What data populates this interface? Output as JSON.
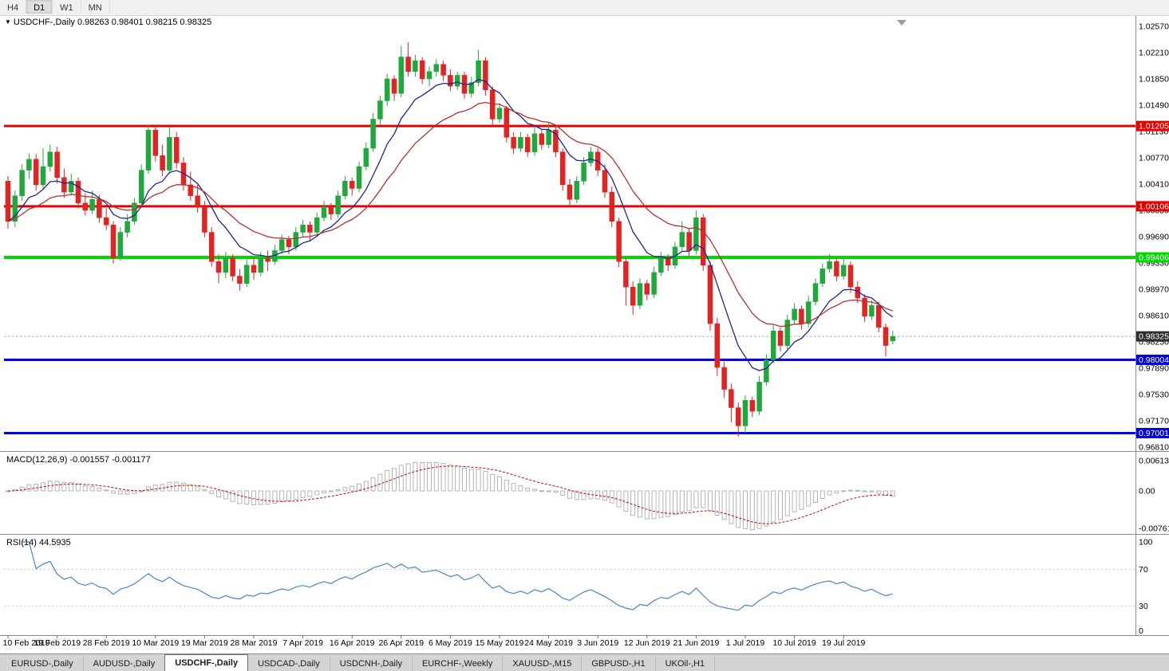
{
  "toolbar": {
    "timeframes": [
      {
        "label": "H4",
        "active": false
      },
      {
        "label": "D1",
        "active": true
      },
      {
        "label": "W1",
        "active": false
      },
      {
        "label": "MN",
        "active": false
      }
    ]
  },
  "chart": {
    "title_text": "USDCHF-,Daily 0.98263 0.98401 0.98215 0.98325",
    "symbol": "USDCHF-,Daily",
    "current_price": 0.98325,
    "current_price_label": "0.98325",
    "price_ticks": [
      "1.02570",
      "1.02210",
      "1.01850",
      "1.01490",
      "1.01130",
      "1.00770",
      "1.00410",
      "1.00050",
      "0.99690",
      "0.99330",
      "0.98970",
      "0.98610",
      "0.98250",
      "0.97890",
      "0.97530",
      "0.97170",
      "0.96810"
    ],
    "levels": [
      {
        "label": "1.01205",
        "price": 1.01205,
        "color": "#e60000",
        "thickness": 3
      },
      {
        "label": "1.00106",
        "price": 1.00106,
        "color": "#e60000",
        "thickness": 3
      },
      {
        "label": "0.99406",
        "price": 0.99406,
        "color": "#00d800",
        "thickness": 4
      },
      {
        "label": "0.98004",
        "price": 0.98004,
        "color": "#0000e6",
        "thickness": 3
      },
      {
        "label": "0.97001",
        "price": 0.97001,
        "color": "#0000e6",
        "thickness": 3
      }
    ],
    "colors": {
      "up": "#1fa83c",
      "down": "#e32222",
      "ma_fast": "#23238f",
      "ma_slow": "#b23232",
      "macd_hist_stroke": "#b4b4b4",
      "macd_signal": "#d00000",
      "rsi_line": "#4a86c8",
      "current_line": "#b4b4b4",
      "current_label_bg": "#2e2e2e"
    }
  },
  "chart_data": {
    "type": "candlestick",
    "symbol": "USDCHF",
    "timeframe": "Daily",
    "ohlc_current": {
      "open": 0.98263,
      "high": 0.98401,
      "low": 0.98215,
      "close": 0.98325
    },
    "candles": [
      [
        1.0045,
        1.0052,
        0.998,
        0.999
      ],
      [
        0.999,
        1.0032,
        0.9982,
        1.0025
      ],
      [
        1.0025,
        1.0068,
        1.0018,
        1.006
      ],
      [
        1.006,
        1.0083,
        1.0048,
        1.0075
      ],
      [
        1.0075,
        1.0082,
        1.0032,
        1.004
      ],
      [
        1.004,
        1.009,
        1.0035,
        1.0065
      ],
      [
        1.0065,
        1.0095,
        1.0058,
        1.0085
      ],
      [
        1.0085,
        1.0092,
        1.0042,
        1.005
      ],
      [
        1.005,
        1.0062,
        1.0022,
        1.003
      ],
      [
        1.003,
        1.0055,
        1.0025,
        1.0045
      ],
      [
        1.0045,
        1.005,
        1.0008,
        1.0015
      ],
      [
        1.0015,
        1.0028,
        0.9998,
        1.0005
      ],
      [
        1.0005,
        1.0032,
        1.0,
        1.002
      ],
      [
        1.002,
        1.0026,
        0.9988,
        0.9995
      ],
      [
        0.9995,
        1.0008,
        0.9978,
        0.9985
      ],
      [
        0.9985,
        0.999,
        0.9932,
        0.994
      ],
      [
        0.994,
        0.9982,
        0.9936,
        0.9975
      ],
      [
        0.9975,
        1.0,
        0.9968,
        0.999
      ],
      [
        0.999,
        1.0022,
        0.9985,
        1.0015
      ],
      [
        1.0015,
        1.0068,
        1.001,
        1.006
      ],
      [
        1.006,
        1.0122,
        1.0055,
        1.0115
      ],
      [
        1.0115,
        1.012,
        1.0072,
        1.008
      ],
      [
        1.008,
        1.0095,
        1.0052,
        1.006
      ],
      [
        1.006,
        1.012,
        1.0055,
        1.0105
      ],
      [
        1.0105,
        1.0112,
        1.0062,
        1.007
      ],
      [
        1.007,
        1.0078,
        1.0032,
        1.004
      ],
      [
        1.004,
        1.0058,
        1.0018,
        1.0025
      ],
      [
        1.0025,
        1.004,
        1.0002,
        1.001
      ],
      [
        1.001,
        1.0018,
        0.9968,
        0.9975
      ],
      [
        0.9975,
        0.9982,
        0.9928,
        0.9935
      ],
      [
        0.9935,
        0.9945,
        0.9905,
        0.992
      ],
      [
        0.992,
        0.9948,
        0.9912,
        0.994
      ],
      [
        0.994,
        0.9945,
        0.9908,
        0.9915
      ],
      [
        0.9915,
        0.9925,
        0.9895,
        0.9905
      ],
      [
        0.9905,
        0.9938,
        0.99,
        0.993
      ],
      [
        0.993,
        0.994,
        0.991,
        0.992
      ],
      [
        0.992,
        0.9948,
        0.9915,
        0.994
      ],
      [
        0.994,
        0.995,
        0.9922,
        0.9935
      ],
      [
        0.9935,
        0.9958,
        0.993,
        0.995
      ],
      [
        0.995,
        0.9972,
        0.9945,
        0.9965
      ],
      [
        0.9965,
        0.997,
        0.9945,
        0.9955
      ],
      [
        0.9955,
        0.9982,
        0.995,
        0.9975
      ],
      [
        0.9975,
        0.9992,
        0.9968,
        0.9985
      ],
      [
        0.9985,
        0.999,
        0.9962,
        0.9975
      ],
      [
        0.9975,
        1.0002,
        0.997,
        0.9995
      ],
      [
        0.9995,
        1.0018,
        0.999,
        1.001
      ],
      [
        1.001,
        1.0015,
        0.9992,
        1.0
      ],
      [
        1.0,
        1.0032,
        0.9995,
        1.0025
      ],
      [
        1.0025,
        1.0052,
        1.002,
        1.0045
      ],
      [
        1.0045,
        1.005,
        1.0025,
        1.0035
      ],
      [
        1.0035,
        1.0072,
        1.003,
        1.0065
      ],
      [
        1.0065,
        1.0098,
        1.006,
        1.009
      ],
      [
        1.009,
        1.0138,
        1.0085,
        1.013
      ],
      [
        1.013,
        1.0162,
        1.0122,
        1.0155
      ],
      [
        1.0155,
        1.0192,
        1.0148,
        1.0185
      ],
      [
        1.0185,
        1.019,
        1.0155,
        1.0165
      ],
      [
        1.0165,
        1.023,
        1.016,
        1.0215
      ],
      [
        1.0215,
        1.0235,
        1.0188,
        1.0195
      ],
      [
        1.0195,
        1.0218,
        1.0188,
        1.021
      ],
      [
        1.021,
        1.0215,
        1.0178,
        1.0185
      ],
      [
        1.0185,
        1.0202,
        1.0175,
        1.0195
      ],
      [
        1.0195,
        1.0212,
        1.0188,
        1.0205
      ],
      [
        1.0205,
        1.021,
        1.0182,
        1.019
      ],
      [
        1.019,
        1.0198,
        1.0168,
        1.0175
      ],
      [
        1.0175,
        1.0195,
        1.017,
        1.019
      ],
      [
        1.019,
        1.0195,
        1.0158,
        1.0165
      ],
      [
        1.0165,
        1.0188,
        1.016,
        1.018
      ],
      [
        1.018,
        1.0225,
        1.0175,
        1.021
      ],
      [
        1.021,
        1.0215,
        1.0162,
        1.017
      ],
      [
        1.017,
        1.0175,
        1.0122,
        1.013
      ],
      [
        1.013,
        1.0152,
        1.0125,
        1.0145
      ],
      [
        1.0145,
        1.0148,
        1.0098,
        1.0105
      ],
      [
        1.0105,
        1.0112,
        1.0082,
        1.009
      ],
      [
        1.009,
        1.0112,
        1.0085,
        1.0105
      ],
      [
        1.0105,
        1.011,
        1.0078,
        1.0085
      ],
      [
        1.0085,
        1.0118,
        1.008,
        1.011
      ],
      [
        1.011,
        1.0115,
        1.0088,
        1.0095
      ],
      [
        1.0095,
        1.0125,
        1.009,
        1.0115
      ],
      [
        1.0115,
        1.012,
        1.0078,
        1.0085
      ],
      [
        1.0085,
        1.009,
        1.0032,
        1.004
      ],
      [
        1.004,
        1.0048,
        1.0012,
        1.002
      ],
      [
        1.002,
        1.0052,
        1.0015,
        1.0045
      ],
      [
        1.0045,
        1.0078,
        1.004,
        1.007
      ],
      [
        1.007,
        1.0092,
        1.0065,
        1.0085
      ],
      [
        1.0085,
        1.009,
        1.0052,
        1.006
      ],
      [
        1.006,
        1.0068,
        1.0022,
        1.003
      ],
      [
        1.003,
        1.0038,
        0.9982,
        0.999
      ],
      [
        0.999,
        0.9995,
        0.9928,
        0.9935
      ],
      [
        0.9935,
        0.994,
        0.9875,
        0.99
      ],
      [
        0.99,
        0.9908,
        0.9862,
        0.9875
      ],
      [
        0.9875,
        0.9912,
        0.987,
        0.9905
      ],
      [
        0.9905,
        0.991,
        0.9882,
        0.989
      ],
      [
        0.989,
        0.9928,
        0.9885,
        0.992
      ],
      [
        0.992,
        0.9948,
        0.9915,
        0.994
      ],
      [
        0.994,
        0.9945,
        0.9922,
        0.993
      ],
      [
        0.993,
        0.9962,
        0.9925,
        0.9955
      ],
      [
        0.9955,
        0.999,
        0.995,
        0.9975
      ],
      [
        0.9975,
        0.998,
        0.9942,
        0.995
      ],
      [
        0.995,
        1.0005,
        0.9945,
        0.9995
      ],
      [
        0.9995,
        1.0,
        0.9922,
        0.993
      ],
      [
        0.993,
        0.9935,
        0.984,
        0.985
      ],
      [
        0.985,
        0.9858,
        0.9778,
        0.979
      ],
      [
        0.979,
        0.9798,
        0.9748,
        0.976
      ],
      [
        0.976,
        0.9768,
        0.9715,
        0.9735
      ],
      [
        0.9735,
        0.9742,
        0.9695,
        0.971
      ],
      [
        0.971,
        0.9752,
        0.97,
        0.9745
      ],
      [
        0.9745,
        0.975,
        0.9722,
        0.973
      ],
      [
        0.973,
        0.9778,
        0.9725,
        0.977
      ],
      [
        0.977,
        0.9808,
        0.9765,
        0.98
      ],
      [
        0.98,
        0.9848,
        0.9795,
        0.984
      ],
      [
        0.984,
        0.9845,
        0.9812,
        0.982
      ],
      [
        0.982,
        0.9862,
        0.9815,
        0.9855
      ],
      [
        0.9855,
        0.9878,
        0.985,
        0.987
      ],
      [
        0.987,
        0.9875,
        0.9842,
        0.985
      ],
      [
        0.985,
        0.9888,
        0.9845,
        0.988
      ],
      [
        0.988,
        0.9912,
        0.9875,
        0.9905
      ],
      [
        0.9905,
        0.9932,
        0.99,
        0.9925
      ],
      [
        0.9925,
        0.9945,
        0.992,
        0.9935
      ],
      [
        0.9935,
        0.994,
        0.9908,
        0.9915
      ],
      [
        0.9915,
        0.994,
        0.991,
        0.993
      ],
      [
        0.993,
        0.9935,
        0.9892,
        0.99
      ],
      [
        0.99,
        0.9908,
        0.9878,
        0.9885
      ],
      [
        0.9885,
        0.989,
        0.9852,
        0.986
      ],
      [
        0.986,
        0.9882,
        0.9855,
        0.9875
      ],
      [
        0.9875,
        0.988,
        0.9838,
        0.9845
      ],
      [
        0.9845,
        0.985,
        0.9805,
        0.982
      ],
      [
        0.98263,
        0.98401,
        0.98215,
        0.98325
      ]
    ],
    "date_labels": [
      "10 Feb 2019",
      "19 Feb 2019",
      "28 Feb 2019",
      "10 Mar 2019",
      "19 Mar 2019",
      "28 Mar 2019",
      "7 Apr 2019",
      "16 Apr 2019",
      "26 Apr 2019",
      "6 May 2019",
      "15 May 2019",
      "24 May 2019",
      "3 Jun 2019",
      "12 Jun 2019",
      "21 Jun 2019",
      "1 Jul 2019",
      "10 Jul 2019",
      "19 Jul 2019"
    ],
    "date_label_step": 7,
    "moving_averages": [
      {
        "name": "fast",
        "period": 9
      },
      {
        "name": "slow",
        "period": 20
      }
    ],
    "indicators": {
      "macd": {
        "label": "MACD(12,26,9) -0.001557 -0.001177",
        "fast": 12,
        "slow": 26,
        "signal": 9,
        "values_text": [
          "-0.001557",
          "-0.001177"
        ],
        "axis_labels": [
          "0.00613",
          "0.00",
          "-0.007612"
        ],
        "axis_values": [
          0.00613,
          0,
          -0.007612
        ]
      },
      "rsi": {
        "label": "RSI(14) 44.5935",
        "period": 14,
        "current": 44.5935,
        "axis_labels": [
          "100",
          "70",
          "30",
          "0"
        ],
        "axis_values": [
          100,
          70,
          30,
          0
        ],
        "levels": [
          70,
          30
        ]
      }
    }
  },
  "tabs": {
    "active_index": 2,
    "items": [
      "EURUSD-,Daily",
      "AUDUSD-,Daily",
      "USDCHF-,Daily",
      "USDCAD-,Daily",
      "USDCNH-,Daily",
      "EURCHF-,Weekly",
      "XAUUSD-,M15",
      "GBPUSD-,H1",
      "UKOil-,H1"
    ]
  }
}
